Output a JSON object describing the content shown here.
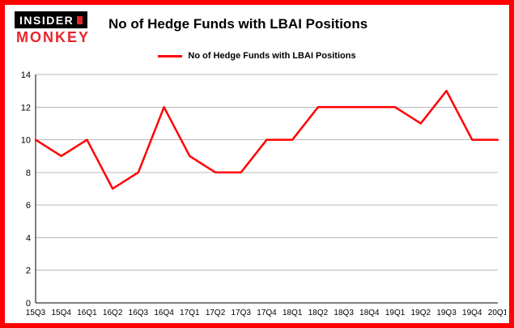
{
  "logo": {
    "top": "INSIDER",
    "bottom": "MONKEY"
  },
  "header": {
    "title": "No of Hedge Funds with LBAI Positions"
  },
  "colors": {
    "frame_border": "#ff0000",
    "line": "#ff0000",
    "grid": "#b8b8b8",
    "axis": "#000000",
    "logo_black": "#000000",
    "logo_red": "#e8242c"
  },
  "chart_data": {
    "type": "line",
    "title": "No of Hedge Funds with LBAI Positions",
    "legend": "No of Hedge Funds with LBAI Positions",
    "categories": [
      "15Q3",
      "15Q4",
      "16Q1",
      "16Q2",
      "16Q3",
      "16Q4",
      "17Q1",
      "17Q2",
      "17Q3",
      "17Q4",
      "18Q1",
      "18Q2",
      "18Q3",
      "18Q4",
      "19Q1",
      "19Q2",
      "19Q3",
      "19Q4",
      "20Q1"
    ],
    "values": [
      10,
      9,
      10,
      7,
      8,
      12,
      9,
      8,
      8,
      10,
      10,
      12,
      12,
      12,
      12,
      11,
      13,
      10,
      10
    ],
    "xlabel": "",
    "ylabel": "",
    "ylim": [
      0,
      14
    ],
    "ytick_step": 2,
    "grid": true,
    "legend_position": "top-center",
    "line_color": "#ff0000"
  }
}
